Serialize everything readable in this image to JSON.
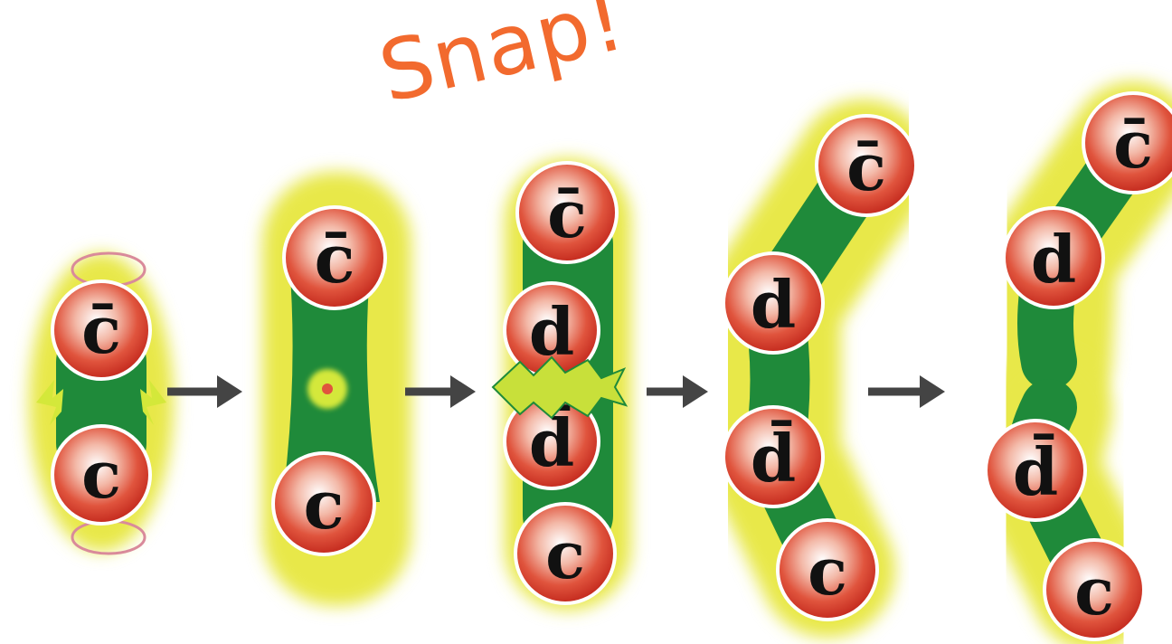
{
  "title": "Snap!",
  "colors": {
    "flux_tube": "#1f8a3a",
    "glow": "#e8e84a",
    "quark_fill": "#d9382a",
    "quark_rim": "#ffffff",
    "arrow": "#444444",
    "snap_text": "#f26a2e"
  },
  "stages": [
    {
      "name": "stage-1-meson",
      "quarks": [
        "c̄",
        "c"
      ]
    },
    {
      "name": "stage-2-stretched",
      "quarks": [
        "c̄",
        "c"
      ]
    },
    {
      "name": "stage-3-pair-creation",
      "quarks": [
        "c̄",
        "d",
        "d̄",
        "c"
      ]
    },
    {
      "name": "stage-4-separating",
      "quarks": [
        "c̄",
        "d",
        "d̄",
        "c"
      ]
    },
    {
      "name": "stage-5-two-mesons",
      "quarks": [
        "c̄",
        "d",
        "d̄",
        "c"
      ]
    }
  ],
  "arrows": [
    "arrow",
    "arrow",
    "arrow",
    "arrow"
  ]
}
